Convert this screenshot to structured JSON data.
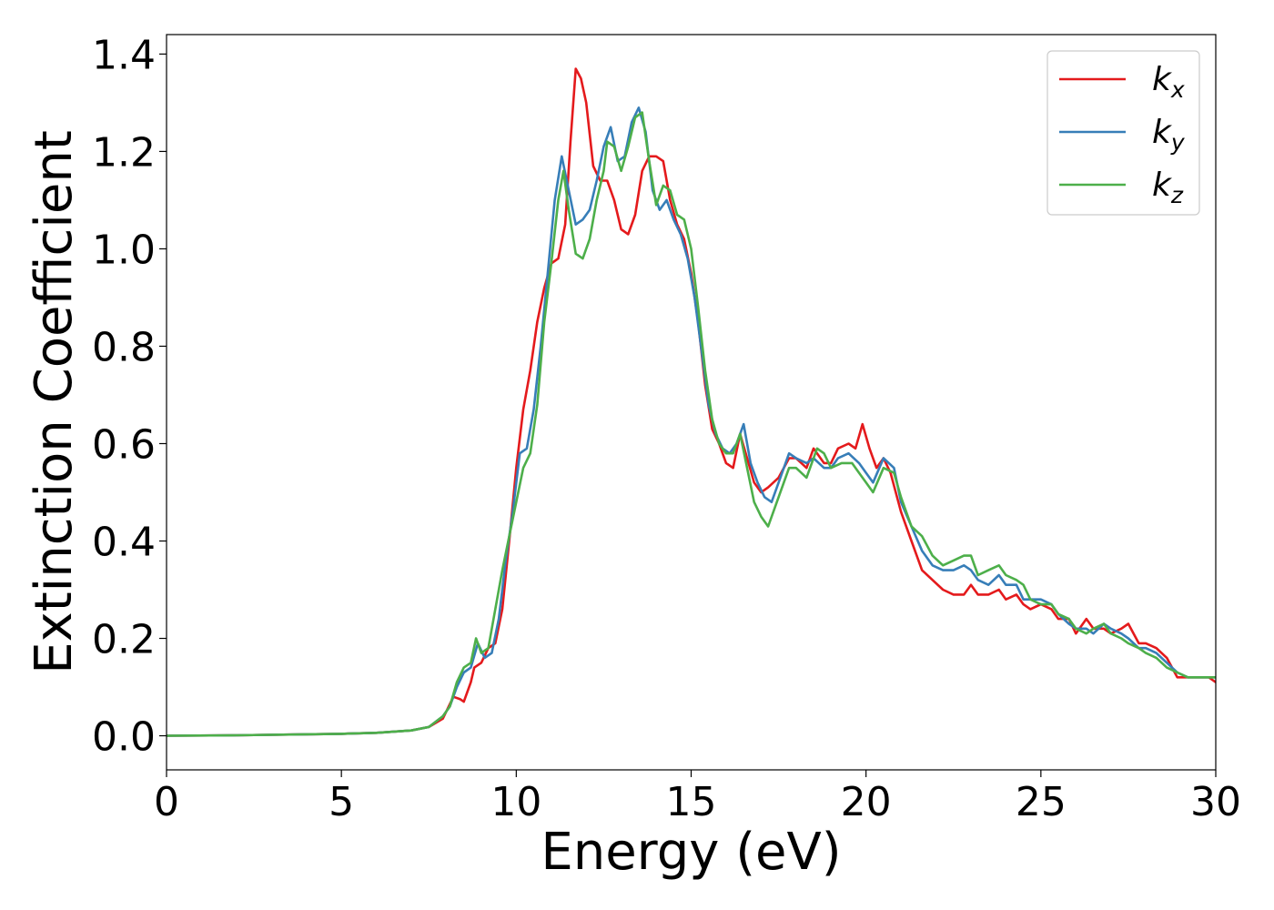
{
  "chart_data": {
    "type": "line",
    "title": "",
    "xlabel": "Energy (eV)",
    "ylabel": "Extinction Coefficient",
    "xlim": [
      0,
      30
    ],
    "ylim": [
      -0.07,
      1.44
    ],
    "xticks": [
      0,
      5,
      10,
      15,
      20,
      25,
      30
    ],
    "xtick_labels": [
      "0",
      "5",
      "10",
      "15",
      "20",
      "25",
      "30"
    ],
    "yticks": [
      0.0,
      0.2,
      0.4,
      0.6,
      0.8,
      1.0,
      1.2,
      1.4
    ],
    "ytick_labels": [
      "0.0",
      "0.2",
      "0.4",
      "0.6",
      "0.8",
      "1.0",
      "1.2",
      "1.4"
    ],
    "grid": false,
    "legend_position": "top-right",
    "series": [
      {
        "name": "k_x",
        "label_base": "k",
        "label_sub": "x",
        "color": "#e41a1c",
        "points": [
          [
            0,
            0.0
          ],
          [
            2,
            0.001
          ],
          [
            4,
            0.003
          ],
          [
            5,
            0.004
          ],
          [
            6,
            0.006
          ],
          [
            7,
            0.011
          ],
          [
            7.5,
            0.018
          ],
          [
            7.9,
            0.035
          ],
          [
            8.2,
            0.08
          ],
          [
            8.4,
            0.075
          ],
          [
            8.5,
            0.07
          ],
          [
            8.7,
            0.11
          ],
          [
            8.8,
            0.14
          ],
          [
            9.0,
            0.15
          ],
          [
            9.2,
            0.18
          ],
          [
            9.4,
            0.19
          ],
          [
            9.6,
            0.26
          ],
          [
            9.8,
            0.4
          ],
          [
            10.0,
            0.55
          ],
          [
            10.2,
            0.67
          ],
          [
            10.4,
            0.75
          ],
          [
            10.6,
            0.85
          ],
          [
            10.8,
            0.92
          ],
          [
            11.0,
            0.97
          ],
          [
            11.2,
            0.98
          ],
          [
            11.4,
            1.05
          ],
          [
            11.55,
            1.22
          ],
          [
            11.7,
            1.37
          ],
          [
            11.85,
            1.35
          ],
          [
            12.0,
            1.3
          ],
          [
            12.2,
            1.17
          ],
          [
            12.4,
            1.14
          ],
          [
            12.6,
            1.14
          ],
          [
            12.8,
            1.1
          ],
          [
            13.0,
            1.04
          ],
          [
            13.2,
            1.03
          ],
          [
            13.4,
            1.07
          ],
          [
            13.6,
            1.16
          ],
          [
            13.8,
            1.19
          ],
          [
            14.0,
            1.19
          ],
          [
            14.2,
            1.18
          ],
          [
            14.4,
            1.1
          ],
          [
            14.6,
            1.05
          ],
          [
            14.8,
            1.02
          ],
          [
            15.0,
            0.95
          ],
          [
            15.2,
            0.85
          ],
          [
            15.4,
            0.72
          ],
          [
            15.6,
            0.63
          ],
          [
            15.8,
            0.6
          ],
          [
            16.0,
            0.56
          ],
          [
            16.2,
            0.55
          ],
          [
            16.4,
            0.62
          ],
          [
            16.6,
            0.57
          ],
          [
            16.8,
            0.52
          ],
          [
            17.0,
            0.5
          ],
          [
            17.2,
            0.51
          ],
          [
            17.5,
            0.53
          ],
          [
            17.8,
            0.57
          ],
          [
            18.0,
            0.57
          ],
          [
            18.3,
            0.55
          ],
          [
            18.5,
            0.59
          ],
          [
            18.8,
            0.56
          ],
          [
            19.0,
            0.56
          ],
          [
            19.2,
            0.59
          ],
          [
            19.5,
            0.6
          ],
          [
            19.7,
            0.59
          ],
          [
            19.9,
            0.64
          ],
          [
            20.1,
            0.59
          ],
          [
            20.3,
            0.55
          ],
          [
            20.5,
            0.57
          ],
          [
            20.7,
            0.54
          ],
          [
            21.0,
            0.46
          ],
          [
            21.3,
            0.4
          ],
          [
            21.6,
            0.34
          ],
          [
            21.9,
            0.32
          ],
          [
            22.2,
            0.3
          ],
          [
            22.5,
            0.29
          ],
          [
            22.8,
            0.29
          ],
          [
            23.0,
            0.31
          ],
          [
            23.2,
            0.29
          ],
          [
            23.5,
            0.29
          ],
          [
            23.8,
            0.3
          ],
          [
            24.0,
            0.28
          ],
          [
            24.3,
            0.29
          ],
          [
            24.5,
            0.27
          ],
          [
            24.7,
            0.26
          ],
          [
            25.0,
            0.27
          ],
          [
            25.3,
            0.26
          ],
          [
            25.5,
            0.24
          ],
          [
            25.8,
            0.24
          ],
          [
            26.0,
            0.21
          ],
          [
            26.3,
            0.24
          ],
          [
            26.5,
            0.22
          ],
          [
            26.8,
            0.22
          ],
          [
            27.0,
            0.21
          ],
          [
            27.3,
            0.22
          ],
          [
            27.5,
            0.23
          ],
          [
            27.8,
            0.19
          ],
          [
            28.0,
            0.19
          ],
          [
            28.3,
            0.18
          ],
          [
            28.6,
            0.16
          ],
          [
            28.9,
            0.12
          ],
          [
            29.2,
            0.12
          ],
          [
            29.5,
            0.12
          ],
          [
            29.8,
            0.12
          ],
          [
            30.0,
            0.11
          ]
        ]
      },
      {
        "name": "k_y",
        "label_base": "k",
        "label_sub": "y",
        "color": "#377eb8",
        "points": [
          [
            0,
            0.0
          ],
          [
            2,
            0.001
          ],
          [
            4,
            0.003
          ],
          [
            5,
            0.004
          ],
          [
            6,
            0.006
          ],
          [
            7,
            0.011
          ],
          [
            7.5,
            0.018
          ],
          [
            7.9,
            0.04
          ],
          [
            8.1,
            0.06
          ],
          [
            8.3,
            0.1
          ],
          [
            8.5,
            0.13
          ],
          [
            8.7,
            0.14
          ],
          [
            8.9,
            0.19
          ],
          [
            9.1,
            0.16
          ],
          [
            9.3,
            0.17
          ],
          [
            9.5,
            0.24
          ],
          [
            9.7,
            0.36
          ],
          [
            9.9,
            0.46
          ],
          [
            10.1,
            0.58
          ],
          [
            10.3,
            0.59
          ],
          [
            10.5,
            0.67
          ],
          [
            10.7,
            0.8
          ],
          [
            10.9,
            0.95
          ],
          [
            11.1,
            1.1
          ],
          [
            11.3,
            1.19
          ],
          [
            11.5,
            1.12
          ],
          [
            11.7,
            1.05
          ],
          [
            11.9,
            1.06
          ],
          [
            12.1,
            1.08
          ],
          [
            12.3,
            1.14
          ],
          [
            12.5,
            1.21
          ],
          [
            12.7,
            1.25
          ],
          [
            12.9,
            1.18
          ],
          [
            13.1,
            1.19
          ],
          [
            13.3,
            1.26
          ],
          [
            13.5,
            1.29
          ],
          [
            13.7,
            1.24
          ],
          [
            13.9,
            1.12
          ],
          [
            14.1,
            1.08
          ],
          [
            14.3,
            1.1
          ],
          [
            14.5,
            1.06
          ],
          [
            14.7,
            1.03
          ],
          [
            14.9,
            0.98
          ],
          [
            15.1,
            0.9
          ],
          [
            15.3,
            0.79
          ],
          [
            15.5,
            0.68
          ],
          [
            15.7,
            0.62
          ],
          [
            15.9,
            0.59
          ],
          [
            16.1,
            0.58
          ],
          [
            16.3,
            0.6
          ],
          [
            16.5,
            0.64
          ],
          [
            16.7,
            0.56
          ],
          [
            16.9,
            0.52
          ],
          [
            17.1,
            0.49
          ],
          [
            17.3,
            0.48
          ],
          [
            17.5,
            0.52
          ],
          [
            17.8,
            0.58
          ],
          [
            18.0,
            0.57
          ],
          [
            18.3,
            0.56
          ],
          [
            18.5,
            0.57
          ],
          [
            18.8,
            0.55
          ],
          [
            19.0,
            0.55
          ],
          [
            19.2,
            0.57
          ],
          [
            19.5,
            0.58
          ],
          [
            19.8,
            0.56
          ],
          [
            20.0,
            0.54
          ],
          [
            20.2,
            0.52
          ],
          [
            20.5,
            0.57
          ],
          [
            20.8,
            0.55
          ],
          [
            21.0,
            0.48
          ],
          [
            21.3,
            0.43
          ],
          [
            21.6,
            0.38
          ],
          [
            21.9,
            0.35
          ],
          [
            22.2,
            0.34
          ],
          [
            22.5,
            0.34
          ],
          [
            22.8,
            0.35
          ],
          [
            23.0,
            0.34
          ],
          [
            23.2,
            0.32
          ],
          [
            23.5,
            0.31
          ],
          [
            23.8,
            0.33
          ],
          [
            24.0,
            0.31
          ],
          [
            24.3,
            0.31
          ],
          [
            24.5,
            0.28
          ],
          [
            24.8,
            0.28
          ],
          [
            25.0,
            0.28
          ],
          [
            25.3,
            0.27
          ],
          [
            25.5,
            0.25
          ],
          [
            25.8,
            0.23
          ],
          [
            26.0,
            0.22
          ],
          [
            26.3,
            0.22
          ],
          [
            26.5,
            0.21
          ],
          [
            26.8,
            0.23
          ],
          [
            27.0,
            0.22
          ],
          [
            27.3,
            0.21
          ],
          [
            27.5,
            0.2
          ],
          [
            27.8,
            0.18
          ],
          [
            28.0,
            0.18
          ],
          [
            28.3,
            0.17
          ],
          [
            28.6,
            0.15
          ],
          [
            28.9,
            0.13
          ],
          [
            29.2,
            0.12
          ],
          [
            29.5,
            0.12
          ],
          [
            29.8,
            0.12
          ],
          [
            30.0,
            0.12
          ]
        ]
      },
      {
        "name": "k_z",
        "label_base": "k",
        "label_sub": "z",
        "color": "#4daf4a",
        "points": [
          [
            0,
            0.0
          ],
          [
            2,
            0.001
          ],
          [
            4,
            0.003
          ],
          [
            5,
            0.004
          ],
          [
            6,
            0.006
          ],
          [
            7,
            0.011
          ],
          [
            7.5,
            0.018
          ],
          [
            7.9,
            0.04
          ],
          [
            8.1,
            0.06
          ],
          [
            8.3,
            0.11
          ],
          [
            8.5,
            0.14
          ],
          [
            8.7,
            0.15
          ],
          [
            8.85,
            0.2
          ],
          [
            9.0,
            0.17
          ],
          [
            9.2,
            0.18
          ],
          [
            9.4,
            0.26
          ],
          [
            9.6,
            0.34
          ],
          [
            9.8,
            0.41
          ],
          [
            10.0,
            0.48
          ],
          [
            10.2,
            0.55
          ],
          [
            10.4,
            0.58
          ],
          [
            10.6,
            0.68
          ],
          [
            10.8,
            0.85
          ],
          [
            11.0,
            0.97
          ],
          [
            11.2,
            1.1
          ],
          [
            11.35,
            1.16
          ],
          [
            11.5,
            1.08
          ],
          [
            11.7,
            0.99
          ],
          [
            11.9,
            0.98
          ],
          [
            12.1,
            1.02
          ],
          [
            12.3,
            1.1
          ],
          [
            12.5,
            1.16
          ],
          [
            12.6,
            1.22
          ],
          [
            12.8,
            1.21
          ],
          [
            13.0,
            1.16
          ],
          [
            13.2,
            1.21
          ],
          [
            13.4,
            1.27
          ],
          [
            13.6,
            1.28
          ],
          [
            13.8,
            1.18
          ],
          [
            14.0,
            1.09
          ],
          [
            14.2,
            1.13
          ],
          [
            14.4,
            1.12
          ],
          [
            14.6,
            1.07
          ],
          [
            14.8,
            1.06
          ],
          [
            15.0,
            1.0
          ],
          [
            15.2,
            0.88
          ],
          [
            15.4,
            0.75
          ],
          [
            15.6,
            0.65
          ],
          [
            15.8,
            0.6
          ],
          [
            16.0,
            0.58
          ],
          [
            16.2,
            0.58
          ],
          [
            16.4,
            0.62
          ],
          [
            16.6,
            0.55
          ],
          [
            16.8,
            0.48
          ],
          [
            17.0,
            0.45
          ],
          [
            17.2,
            0.43
          ],
          [
            17.5,
            0.49
          ],
          [
            17.8,
            0.55
          ],
          [
            18.0,
            0.55
          ],
          [
            18.3,
            0.53
          ],
          [
            18.6,
            0.59
          ],
          [
            18.8,
            0.58
          ],
          [
            19.0,
            0.55
          ],
          [
            19.3,
            0.56
          ],
          [
            19.6,
            0.56
          ],
          [
            19.8,
            0.54
          ],
          [
            20.0,
            0.52
          ],
          [
            20.2,
            0.5
          ],
          [
            20.5,
            0.55
          ],
          [
            20.8,
            0.54
          ],
          [
            21.0,
            0.49
          ],
          [
            21.3,
            0.43
          ],
          [
            21.6,
            0.41
          ],
          [
            21.9,
            0.37
          ],
          [
            22.2,
            0.35
          ],
          [
            22.5,
            0.36
          ],
          [
            22.8,
            0.37
          ],
          [
            23.0,
            0.37
          ],
          [
            23.2,
            0.33
          ],
          [
            23.5,
            0.34
          ],
          [
            23.8,
            0.35
          ],
          [
            24.0,
            0.33
          ],
          [
            24.3,
            0.32
          ],
          [
            24.5,
            0.31
          ],
          [
            24.7,
            0.28
          ],
          [
            25.0,
            0.27
          ],
          [
            25.3,
            0.27
          ],
          [
            25.5,
            0.25
          ],
          [
            25.8,
            0.24
          ],
          [
            26.0,
            0.22
          ],
          [
            26.3,
            0.21
          ],
          [
            26.5,
            0.22
          ],
          [
            26.8,
            0.23
          ],
          [
            27.0,
            0.21
          ],
          [
            27.3,
            0.2
          ],
          [
            27.5,
            0.19
          ],
          [
            27.8,
            0.18
          ],
          [
            28.0,
            0.17
          ],
          [
            28.3,
            0.16
          ],
          [
            28.6,
            0.14
          ],
          [
            28.9,
            0.13
          ],
          [
            29.2,
            0.12
          ],
          [
            29.5,
            0.12
          ],
          [
            29.8,
            0.12
          ],
          [
            30.0,
            0.12
          ]
        ]
      }
    ]
  }
}
